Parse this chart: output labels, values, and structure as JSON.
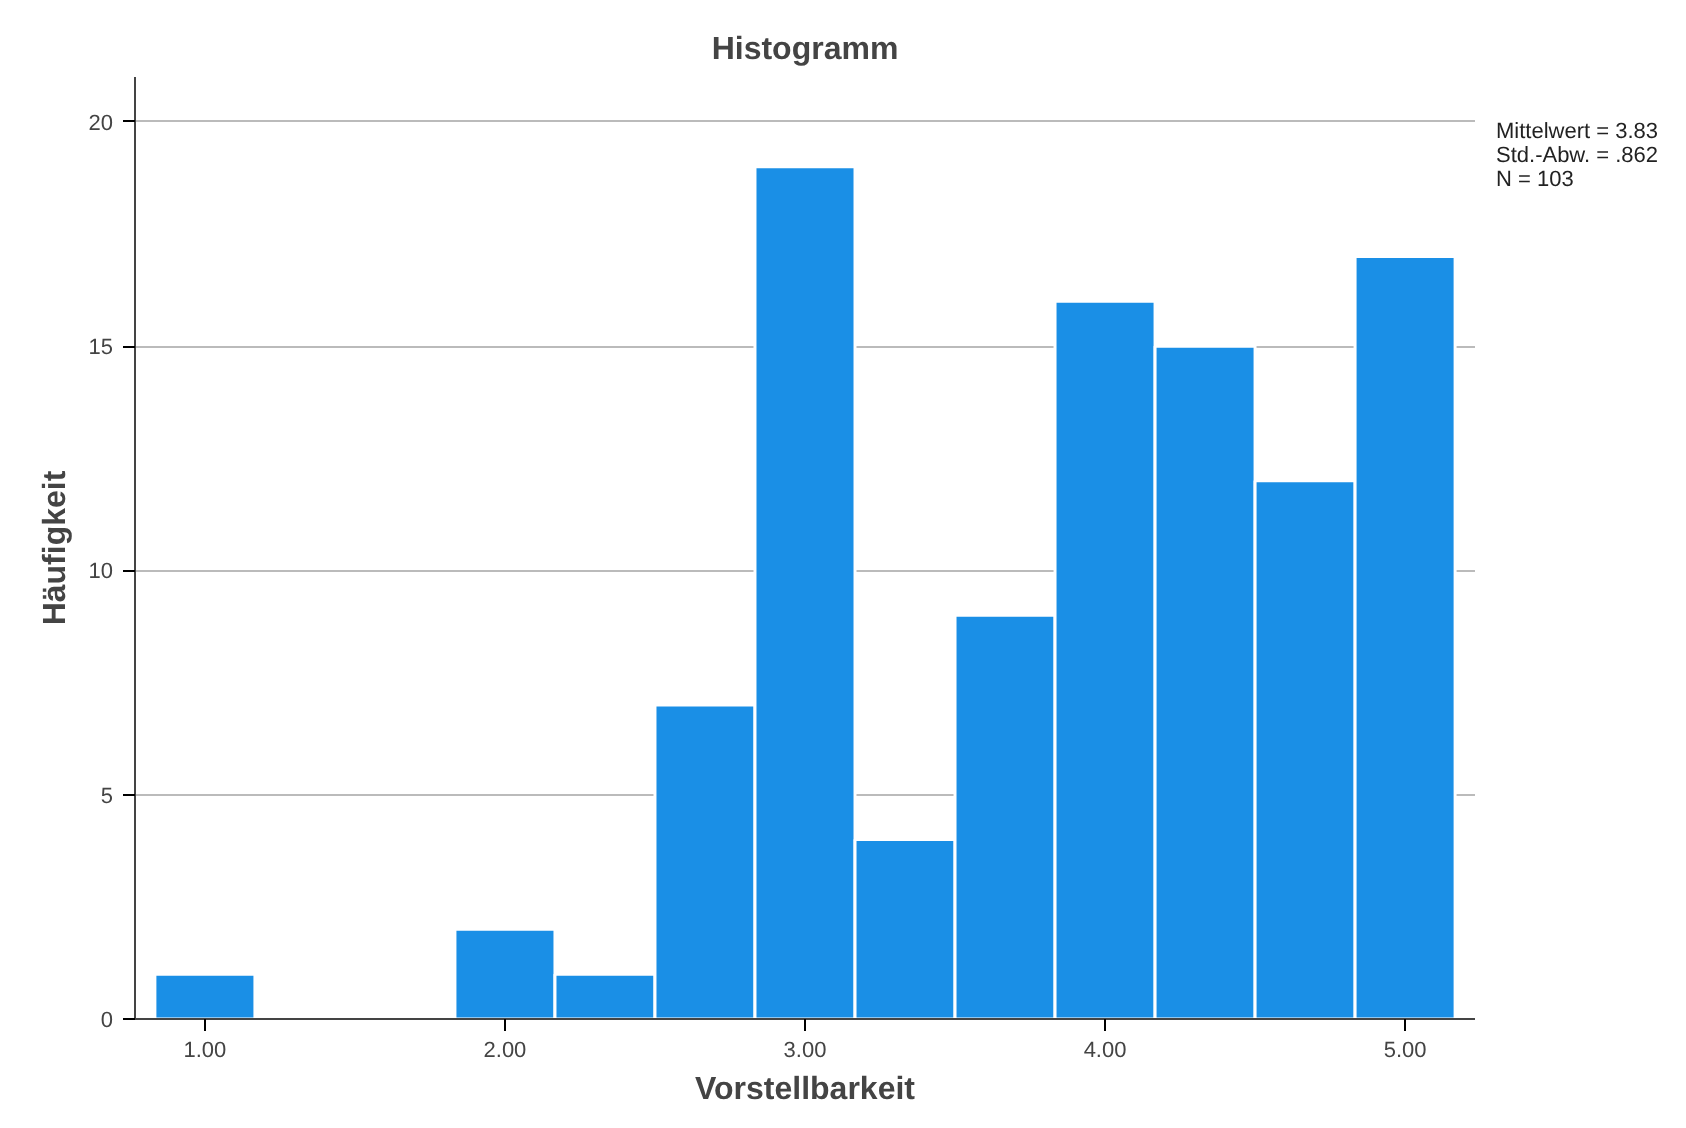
{
  "chart_data": {
    "type": "histogram",
    "title": "Histogramm",
    "xlabel": "Vorstellbarkeit",
    "ylabel": "Häufigkeit",
    "bins": [
      0.8333,
      1.1667,
      1.5,
      1.8333,
      2.1667,
      2.5,
      2.8333,
      3.1667,
      3.5,
      3.8333,
      4.1667,
      4.5,
      4.8333,
      5.1667
    ],
    "values": [
      1,
      0,
      0,
      2,
      1,
      7,
      19,
      4,
      9,
      16,
      15,
      12,
      17
    ],
    "color": "#1a8fe6",
    "xlim": [
      0.767,
      5.233
    ],
    "ylim": [
      0,
      21
    ],
    "xticks": [
      {
        "value": 1,
        "label": "1.00"
      },
      {
        "value": 2,
        "label": "2.00"
      },
      {
        "value": 3,
        "label": "3.00"
      },
      {
        "value": 4,
        "label": "4.00"
      },
      {
        "value": 5,
        "label": "5.00"
      }
    ],
    "yticks": [
      0,
      5,
      10,
      15,
      20
    ],
    "grid": "y",
    "annotations": [
      "Mittelwert = 3.83",
      "Std.-Abw. = .862",
      "N = 103"
    ]
  }
}
